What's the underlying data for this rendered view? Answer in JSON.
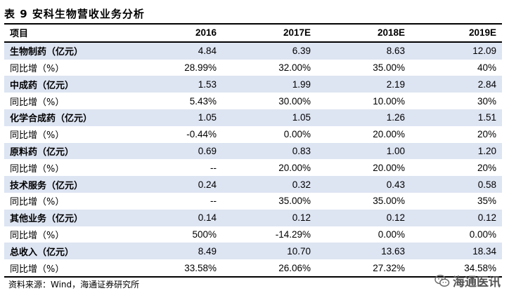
{
  "title": "表 9  安科生物营收业务分析",
  "table": {
    "headers": [
      "项目",
      "2016",
      "2017E",
      "2018E",
      "2019E"
    ],
    "rows": [
      {
        "label": "生物制药（亿元）",
        "values": [
          "4.84",
          "6.39",
          "8.63",
          "12.09"
        ],
        "bold": true,
        "shaded": true
      },
      {
        "label": "同比增（%）",
        "values": [
          "28.99%",
          "32.00%",
          "35.00%",
          "40%"
        ],
        "bold": false,
        "shaded": false
      },
      {
        "label": "中成药（亿元）",
        "values": [
          "1.53",
          "1.99",
          "2.19",
          "2.84"
        ],
        "bold": true,
        "shaded": true
      },
      {
        "label": "同比增（%）",
        "values": [
          "5.43%",
          "30.00%",
          "10.00%",
          "30%"
        ],
        "bold": false,
        "shaded": false
      },
      {
        "label": "化学合成药（亿元）",
        "values": [
          "1.05",
          "1.05",
          "1.26",
          "1.51"
        ],
        "bold": true,
        "shaded": true
      },
      {
        "label": "同比增（%）",
        "values": [
          "-0.44%",
          "0.00%",
          "20.00%",
          "20%"
        ],
        "bold": false,
        "shaded": false
      },
      {
        "label": "原料药（亿元）",
        "values": [
          "0.69",
          "0.83",
          "1.00",
          "1.20"
        ],
        "bold": true,
        "shaded": true
      },
      {
        "label": "同比增（%）",
        "values": [
          "--",
          "20.00%",
          "20.00%",
          "20%"
        ],
        "bold": false,
        "shaded": false
      },
      {
        "label": "技术服务（亿元）",
        "values": [
          "0.24",
          "0.32",
          "0.43",
          "0.58"
        ],
        "bold": true,
        "shaded": true
      },
      {
        "label": "同比增（%）",
        "values": [
          "--",
          "35.00%",
          "35.00%",
          "35%"
        ],
        "bold": false,
        "shaded": false
      },
      {
        "label": "其他业务（亿元）",
        "values": [
          "0.14",
          "0.12",
          "0.12",
          "0.12"
        ],
        "bold": true,
        "shaded": true
      },
      {
        "label": "同比增（%）",
        "values": [
          "500%",
          "-14.29%",
          "0.00%",
          "0.00%"
        ],
        "bold": false,
        "shaded": false
      },
      {
        "label": "总收入（亿元）",
        "values": [
          "8.49",
          "10.70",
          "13.63",
          "18.34"
        ],
        "bold": true,
        "shaded": true
      },
      {
        "label": "同比增（%）",
        "values": [
          "33.58%",
          "26.06%",
          "27.32%",
          "34.58%"
        ],
        "bold": false,
        "shaded": false
      }
    ]
  },
  "source": "资料来源：Wind，海通证券研究所",
  "watermark": {
    "text": "海通医讯",
    "icon": "wechat-icon"
  }
}
